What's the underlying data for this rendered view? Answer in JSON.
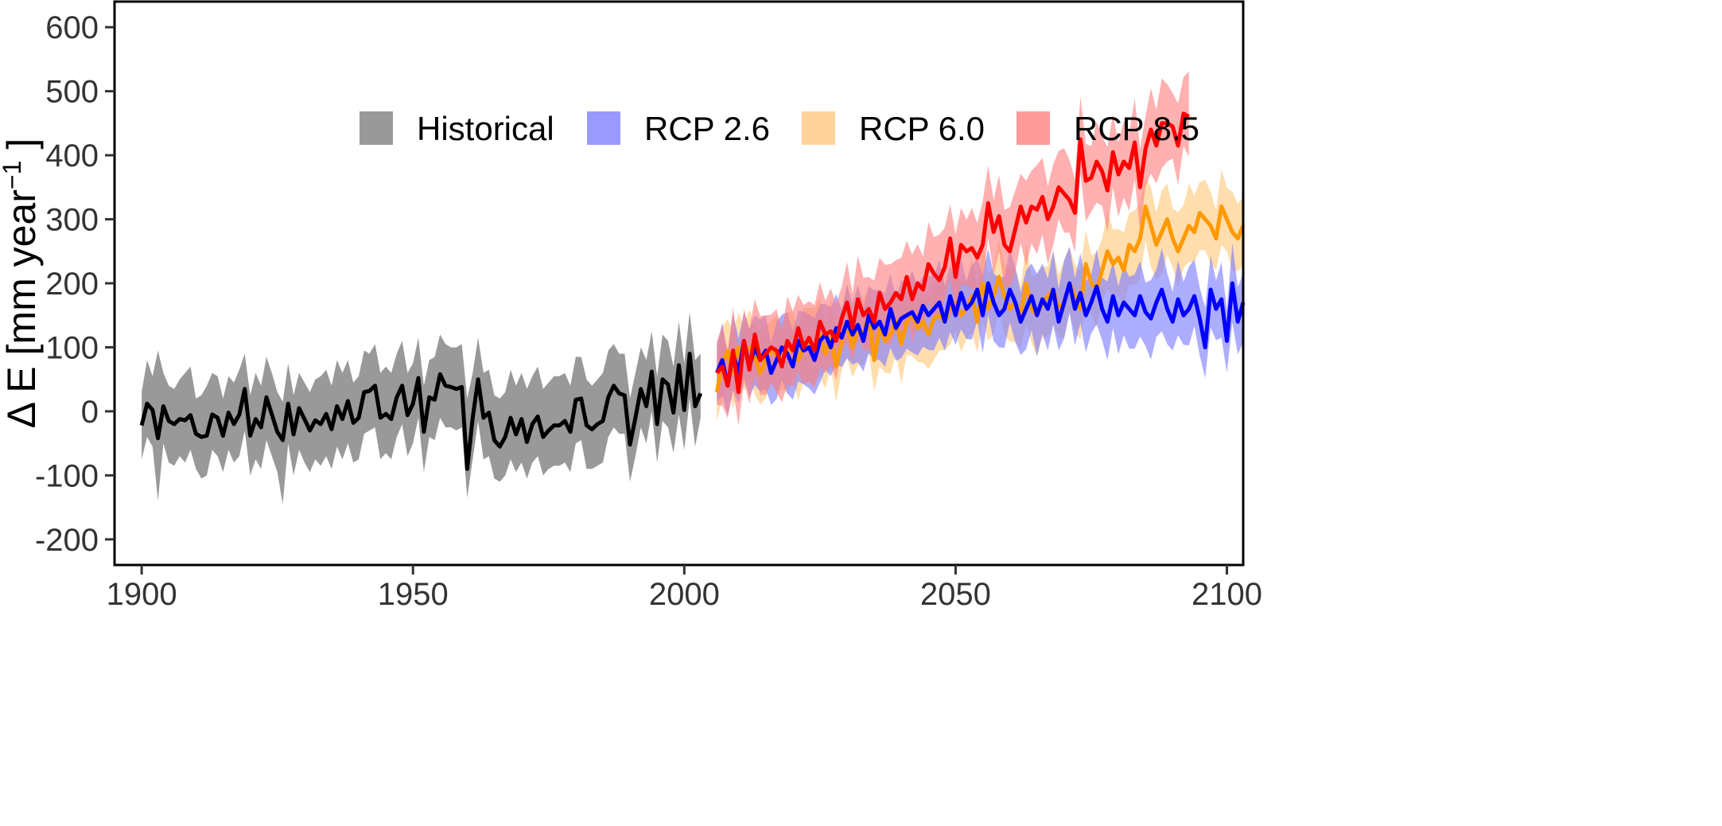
{
  "chart_data": {
    "type": "line",
    "title": "",
    "xlabel": "",
    "ylabel": "Δ E [mm year",
    "ylabel_superscript": "−1",
    "ylabel_suffix": "]",
    "xlim": [
      1895,
      2103
    ],
    "ylim": [
      -240,
      640
    ],
    "x_ticks": [
      1900,
      1950,
      2000,
      2050,
      2100
    ],
    "y_ticks": [
      -200,
      -100,
      0,
      100,
      200,
      300,
      400,
      500,
      600
    ],
    "grid": false,
    "legend_position": "top-left (inside plot)",
    "legend": [
      {
        "label": "Historical",
        "color": "#999999"
      },
      {
        "label": "RCP 2.6",
        "color": "#9999ff"
      },
      {
        "label": "RCP 6.0",
        "color": "#ffd39b"
      },
      {
        "label": "RCP 8.5",
        "color": "#ff9a9a"
      }
    ],
    "series": [
      {
        "name": "Historical",
        "line_color": "#000000",
        "band_color": "#999999",
        "band_opacity": 1.0,
        "x_start": 1900,
        "values": [
          -22,
          12,
          2,
          -42,
          8,
          -15,
          -20,
          -12,
          -14,
          -6,
          -35,
          -40,
          -38,
          -5,
          -10,
          -38,
          -2,
          -20,
          -5,
          35,
          -38,
          -12,
          -25,
          22,
          -5,
          -32,
          -45,
          12,
          -36,
          5,
          -12,
          -30,
          -14,
          -20,
          -4,
          -28,
          8,
          -12,
          16,
          -18,
          -10,
          30,
          32,
          40,
          -10,
          -4,
          -12,
          22,
          40,
          -6,
          12,
          52,
          -32,
          22,
          18,
          58,
          40,
          38,
          35,
          38,
          -90,
          -10,
          50,
          -10,
          -2,
          -45,
          -55,
          -40,
          -10,
          -36,
          -12,
          -48,
          -20,
          -8,
          -40,
          -30,
          -22,
          -22,
          -15,
          -32,
          18,
          20,
          -22,
          -28,
          -20,
          -15,
          22,
          40,
          28,
          25,
          -52,
          -10,
          35,
          8,
          62,
          -20,
          50,
          42,
          -2,
          72,
          2,
          90,
          8,
          28
        ],
        "upper": [
          30,
          80,
          55,
          95,
          60,
          40,
          35,
          50,
          60,
          70,
          20,
          25,
          40,
          60,
          55,
          20,
          55,
          45,
          65,
          90,
          25,
          60,
          40,
          85,
          60,
          30,
          15,
          75,
          25,
          60,
          45,
          30,
          50,
          55,
          65,
          40,
          80,
          60,
          80,
          45,
          55,
          95,
          90,
          105,
          60,
          70,
          60,
          90,
          110,
          60,
          75,
          115,
          40,
          80,
          85,
          120,
          105,
          100,
          100,
          105,
          20,
          60,
          115,
          60,
          65,
          25,
          20,
          30,
          65,
          40,
          60,
          35,
          55,
          70,
          35,
          45,
          55,
          55,
          60,
          40,
          85,
          85,
          50,
          40,
          50,
          60,
          95,
          105,
          90,
          90,
          20,
          60,
          100,
          80,
          125,
          55,
          120,
          110,
          70,
          140,
          75,
          155,
          80,
          90
        ],
        "lower": [
          -75,
          -40,
          -55,
          -140,
          -50,
          -80,
          -85,
          -70,
          -80,
          -60,
          -90,
          -105,
          -100,
          -60,
          -70,
          -95,
          -60,
          -80,
          -70,
          -30,
          -100,
          -75,
          -90,
          -45,
          -70,
          -95,
          -145,
          -50,
          -100,
          -60,
          -80,
          -95,
          -75,
          -85,
          -70,
          -90,
          -55,
          -75,
          -50,
          -80,
          -75,
          -35,
          -30,
          -25,
          -75,
          -65,
          -75,
          -40,
          -20,
          -70,
          -50,
          -10,
          -95,
          -40,
          -45,
          -10,
          -25,
          -25,
          -30,
          -25,
          -135,
          -75,
          -15,
          -75,
          -70,
          -105,
          -110,
          -100,
          -75,
          -95,
          -80,
          -105,
          -80,
          -70,
          -100,
          -90,
          -85,
          -85,
          -80,
          -95,
          -50,
          -45,
          -90,
          -90,
          -85,
          -80,
          -40,
          -25,
          -35,
          -35,
          -110,
          -70,
          -25,
          -50,
          0,
          -80,
          -15,
          -25,
          -65,
          -5,
          -60,
          20,
          -55,
          -10
        ]
      },
      {
        "name": "RCP 6.0",
        "line_color": "#ff9900",
        "band_color": "#ffc87a",
        "band_opacity": 0.62,
        "x_start": 2006,
        "values": [
          30,
          75,
          95,
          60,
          100,
          90,
          100,
          85,
          60,
          80,
          95,
          90,
          85,
          90,
          100,
          80,
          100,
          110,
          95,
          120,
          90,
          115,
          70,
          110,
          140,
          100,
          130,
          120,
          150,
          80,
          130,
          110,
          120,
          140,
          105,
          140,
          150,
          130,
          140,
          120,
          145,
          150,
          140,
          160,
          170,
          150,
          160,
          180,
          140,
          200,
          160,
          180,
          210,
          180,
          160,
          170,
          150,
          200,
          160,
          150,
          170,
          180,
          190,
          160,
          170,
          200,
          180,
          160,
          230,
          200,
          190,
          220,
          250,
          230,
          240,
          220,
          260,
          250,
          270,
          320,
          290,
          260,
          280,
          300,
          270,
          250,
          270,
          290,
          280,
          310,
          300,
          290,
          270,
          320,
          300,
          280,
          270,
          290
        ]
      },
      {
        "name": "RCP 2.6",
        "line_color": "#0000ff",
        "band_color": "#7a7aff",
        "band_opacity": 0.62,
        "x_start": 2006,
        "values": [
          60,
          80,
          40,
          90,
          60,
          110,
          70,
          100,
          80,
          95,
          60,
          80,
          100,
          90,
          70,
          110,
          95,
          100,
          80,
          110,
          120,
          100,
          130,
          115,
          140,
          120,
          135,
          110,
          150,
          130,
          140,
          120,
          160,
          130,
          145,
          150,
          155,
          140,
          165,
          150,
          160,
          170,
          140,
          180,
          150,
          185,
          160,
          170,
          190,
          150,
          200,
          170,
          150,
          160,
          190,
          170,
          140,
          160,
          180,
          150,
          175,
          160,
          190,
          140,
          170,
          200,
          160,
          185,
          150,
          170,
          195,
          160,
          140,
          180,
          150,
          170,
          160,
          150,
          180,
          155,
          145,
          170,
          190,
          160,
          140,
          175,
          150,
          160,
          180,
          145,
          100,
          190,
          160,
          175,
          110,
          200,
          140,
          170
        ]
      },
      {
        "name": "RCP 8.5",
        "line_color": "#ff0000",
        "band_color": "#ff7f7f",
        "band_opacity": 0.62,
        "x_start": 2006,
        "values": [
          60,
          70,
          40,
          95,
          30,
          110,
          65,
          120,
          80,
          90,
          100,
          95,
          70,
          110,
          95,
          130,
          100,
          115,
          95,
          140,
          120,
          125,
          110,
          145,
          170,
          130,
          175,
          150,
          160,
          140,
          185,
          160,
          170,
          185,
          175,
          210,
          175,
          200,
          190,
          230,
          215,
          205,
          225,
          270,
          210,
          260,
          250,
          255,
          240,
          260,
          325,
          280,
          305,
          260,
          250,
          285,
          320,
          295,
          320,
          315,
          335,
          300,
          320,
          350,
          340,
          330,
          310,
          425,
          360,
          365,
          390,
          375,
          345,
          405,
          370,
          390,
          380,
          420,
          350,
          410,
          440,
          415,
          450,
          450,
          445,
          415,
          465,
          460
        ]
      }
    ]
  }
}
